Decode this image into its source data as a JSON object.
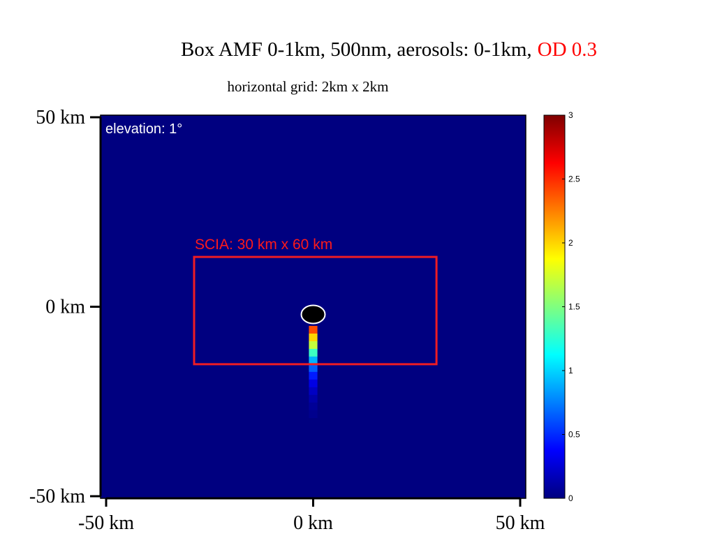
{
  "chart_data": {
    "type": "heatmap",
    "title": "Box AMF 0-1km, 500nm, aerosols: 0-1km,",
    "title_highlight": "OD 0.3",
    "title_highlight_color": "#ff0000",
    "subtitle": "horizontal grid: 2km x 2km",
    "xlim": [
      -50,
      50
    ],
    "ylim": [
      -50,
      50
    ],
    "x_ticks": [
      {
        "value": -50,
        "label": "-50 km"
      },
      {
        "value": 0,
        "label": "0 km"
      },
      {
        "value": 50,
        "label": "50 km"
      }
    ],
    "y_ticks": [
      {
        "value": 50,
        "label": "50 km"
      },
      {
        "value": 0,
        "label": "0 km"
      },
      {
        "value": -50,
        "label": "-50 km"
      }
    ],
    "colorbar": {
      "min": 0,
      "max": 3,
      "colormap": "jet",
      "ticks": [
        {
          "value": 3,
          "label": "3"
        },
        {
          "value": 2.5,
          "label": "2.5"
        },
        {
          "value": 2,
          "label": "2"
        },
        {
          "value": 1.5,
          "label": "1.5"
        },
        {
          "value": 1,
          "label": "1"
        },
        {
          "value": 0.5,
          "label": "0.5"
        },
        {
          "value": 0,
          "label": "0"
        }
      ]
    },
    "background_value": 0,
    "annotation": "elevation: 1°",
    "region": {
      "label": "SCIA: 30 km x 60 km",
      "x": [
        -28,
        29
      ],
      "y": [
        -15,
        13
      ],
      "color": "#ee1c24"
    },
    "instrument": {
      "x": 0,
      "y": -2,
      "color": "#000000"
    },
    "cell_size": 2,
    "cells": [
      {
        "x": 0,
        "y": -6,
        "value": 2.4
      },
      {
        "x": 0,
        "y": -8,
        "value": 2.0
      },
      {
        "x": 0,
        "y": -10,
        "value": 1.7
      },
      {
        "x": 0,
        "y": -12,
        "value": 1.3
      },
      {
        "x": 0,
        "y": -14,
        "value": 0.9
      },
      {
        "x": 0,
        "y": -16,
        "value": 0.65
      },
      {
        "x": 0,
        "y": -18,
        "value": 0.45
      },
      {
        "x": 0,
        "y": -20,
        "value": 0.3
      },
      {
        "x": 0,
        "y": -22,
        "value": 0.2
      },
      {
        "x": 0,
        "y": -24,
        "value": 0.12
      },
      {
        "x": 0,
        "y": -26,
        "value": 0.07
      },
      {
        "x": 0,
        "y": -28,
        "value": 0.04
      }
    ]
  }
}
